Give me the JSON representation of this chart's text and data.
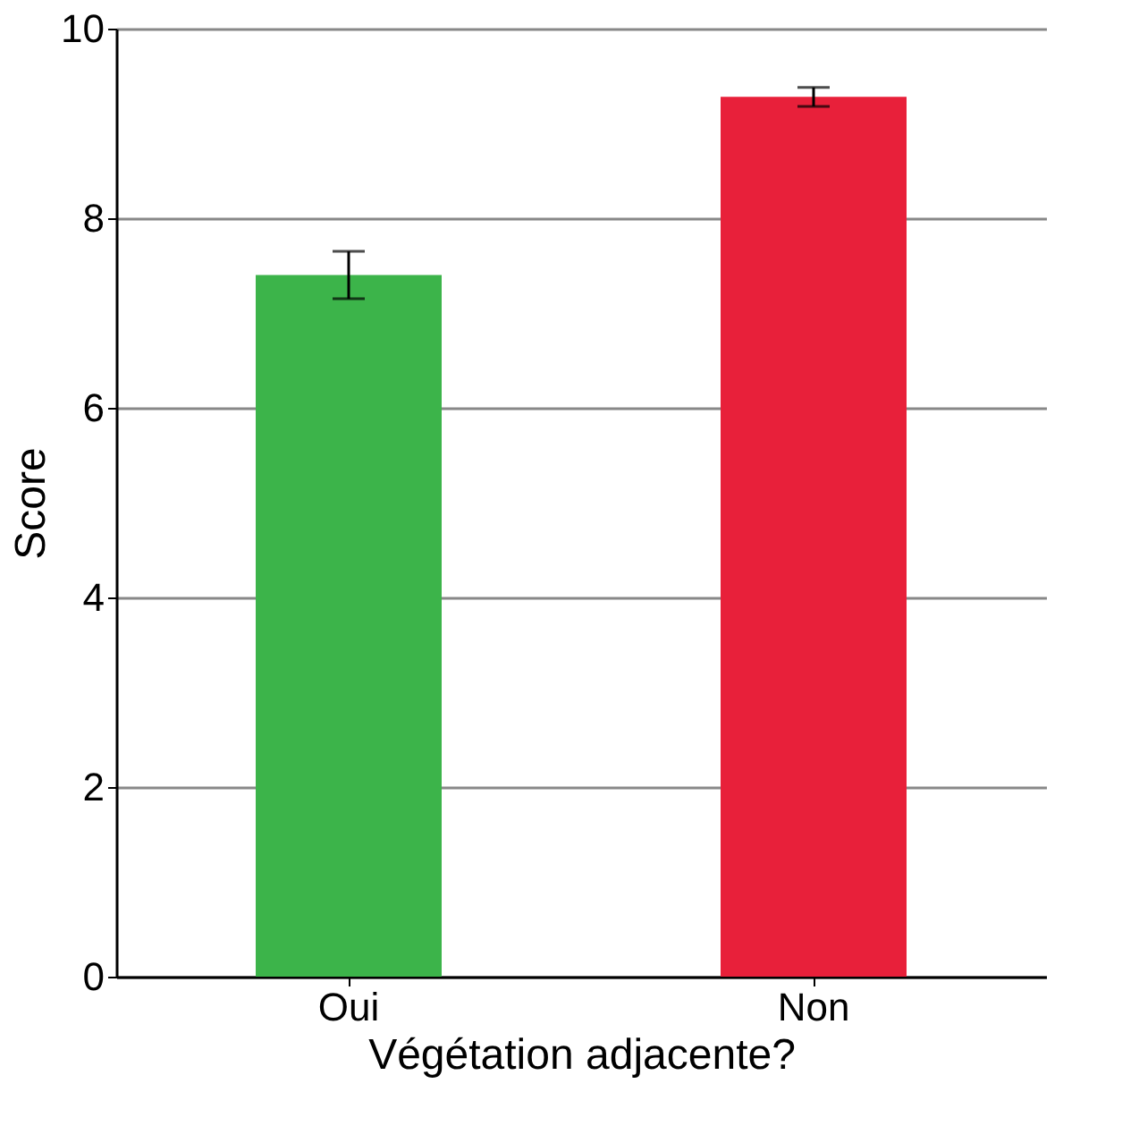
{
  "chart_data": {
    "type": "bar",
    "xlabel": "Végétation adjacente?",
    "ylabel": "Score",
    "categories": [
      "Oui",
      "Non"
    ],
    "values": [
      7.4,
      9.28
    ],
    "errors": [
      0.25,
      0.1
    ],
    "colors": [
      "#3cb44a",
      "#e8203a"
    ],
    "ylim": [
      0,
      10
    ],
    "yticks": [
      0,
      2,
      4,
      6,
      8,
      10
    ],
    "grid": "y"
  }
}
